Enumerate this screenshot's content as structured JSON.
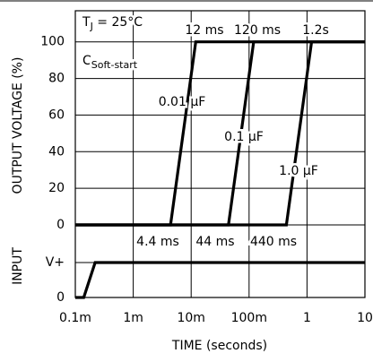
{
  "chart_data": [
    {
      "type": "line",
      "ylabel": "OUTPUT VOLTAGE (%)",
      "log_x": true,
      "grid": true,
      "color": "#000000",
      "xlim": [
        0.0001,
        10
      ],
      "xticks": [
        {
          "value": 0.0001,
          "label": "0.1m"
        },
        {
          "value": 0.001,
          "label": "1m"
        },
        {
          "value": 0.01,
          "label": "10m"
        },
        {
          "value": 0.1,
          "label": "100m"
        },
        1,
        10
      ],
      "xlabel": "TIME (seconds)",
      "ylim": [
        0,
        117
      ],
      "yticks": [
        0,
        20,
        40,
        60,
        80,
        100
      ],
      "series": [
        {
          "name": "0.01 µF",
          "x": [
            0.0001,
            0.0044,
            0.012,
            10
          ],
          "values": [
            0,
            0,
            100,
            100
          ]
        },
        {
          "name": "0.1 µF",
          "x": [
            0.0001,
            0.044,
            0.12,
            10
          ],
          "values": [
            0,
            0,
            100,
            100
          ]
        },
        {
          "name": "1.0 µF",
          "x": [
            0.0001,
            0.44,
            1.2,
            10
          ],
          "values": [
            0,
            0,
            100,
            100
          ]
        }
      ],
      "annotations": [
        {
          "text": "T",
          "sub": "J",
          "after": " = 25°C"
        },
        {
          "text": "C",
          "sub": "Soft-start"
        },
        {
          "text": "12 ms"
        },
        {
          "text": "120 ms"
        },
        {
          "text": "1.2s"
        },
        {
          "text": "4.4 ms"
        },
        {
          "text": "44 ms"
        },
        {
          "text": "440 ms"
        }
      ]
    },
    {
      "type": "line",
      "ylabel": "INPUT",
      "log_x": true,
      "grid": true,
      "color": "#000000",
      "xlim": [
        0.0001,
        10
      ],
      "ylim": [
        0,
        1
      ],
      "yticks": [
        0,
        {
          "value": 1,
          "label": "V+"
        }
      ],
      "series": [
        {
          "x": [
            0.0001,
            0.00014,
            0.00022,
            10
          ],
          "values": [
            0,
            0,
            1,
            1
          ]
        }
      ]
    }
  ]
}
